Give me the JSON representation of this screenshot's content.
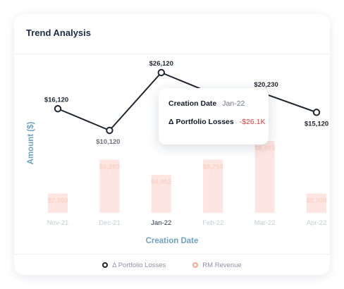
{
  "card": {
    "title": "Trend Analysis"
  },
  "chart_data": {
    "type": "bar+line",
    "x": [
      "Nov-21",
      "Dec-21",
      "Jan-22",
      "Feb-22",
      "Mar-22",
      "Apr-22"
    ],
    "highlighted_x": "Jan-22",
    "xlabel": "Creation Date",
    "ylabel": "Amount ($)",
    "grid": false,
    "legend_placement": "bottom",
    "series": [
      {
        "name": "RM Revenue",
        "type": "bar",
        "values": [
          2300,
          6293,
          4502,
          6293,
          8493,
          2300
        ],
        "labels": [
          "$2,300",
          "$6,293",
          "$4,502",
          "$6,293",
          "$8,493",
          "$2,300"
        ],
        "color": "#f7a593"
      },
      {
        "name": "Δ Portfolio Losses",
        "type": "line",
        "values": [
          16120,
          10120,
          26120,
          20230,
          20230,
          15120
        ],
        "labels": [
          "$16,120",
          "$10,120",
          "$26,120",
          "",
          "$20,230",
          "$15,120"
        ],
        "color": "#1f2630"
      }
    ]
  },
  "tooltip": {
    "rows": [
      {
        "key": "Creation Date",
        "value": "Jan-22"
      },
      {
        "key": "Δ Portfolio Losses",
        "value": "-$26.1K"
      }
    ]
  },
  "colors": {
    "title": "#1b2b4b",
    "axis_label": "#6ea3c4",
    "bar": "#f7a593",
    "line": "#1f2630",
    "negative": "#e23a3a"
  }
}
